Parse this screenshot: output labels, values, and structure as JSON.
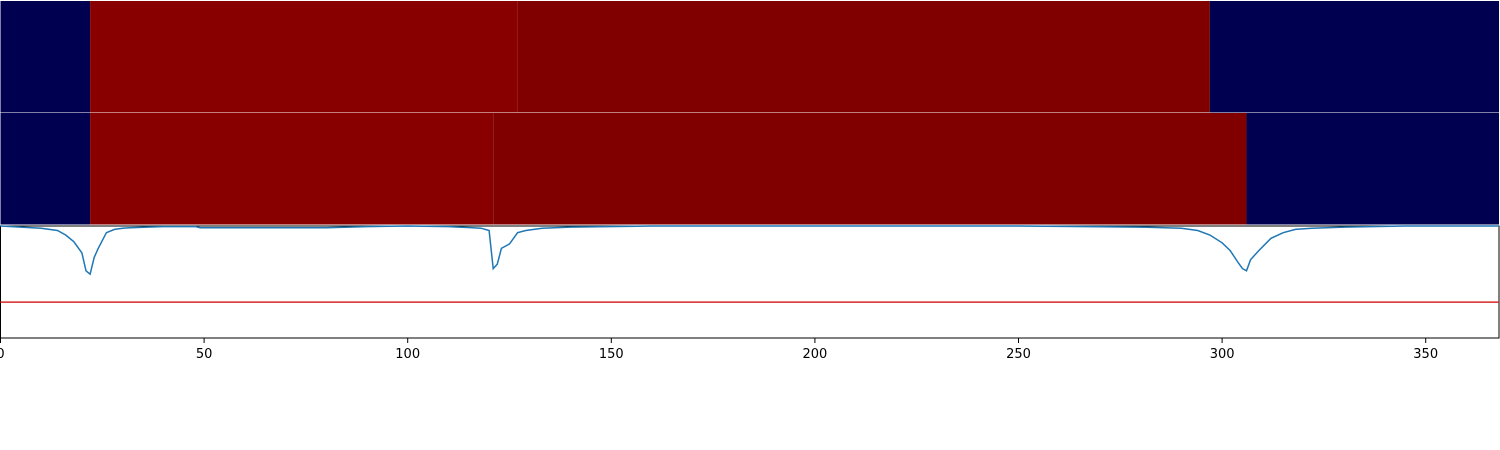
{
  "chart_data": {
    "type": "heatmap",
    "title": "",
    "xlabel": "",
    "ylabel": "",
    "xlim": [
      0,
      368
    ],
    "xticks": [
      0,
      50,
      100,
      150,
      200,
      250,
      300,
      350
    ],
    "grid": false,
    "legend": "none",
    "segment_rows": [
      {
        "name": "",
        "segments": [
          {
            "start": 0,
            "end": 22,
            "color": "#000050"
          },
          {
            "start": 22,
            "end": 127,
            "color": "#890000"
          },
          {
            "start": 127,
            "end": 297,
            "color": "#800000"
          },
          {
            "start": 297,
            "end": 368,
            "color": "#000050"
          }
        ]
      },
      {
        "name": "",
        "segments": [
          {
            "start": 0,
            "end": 22,
            "color": "#000050"
          },
          {
            "start": 22,
            "end": 121,
            "color": "#890000"
          },
          {
            "start": 121,
            "end": 306,
            "color": "#800000"
          },
          {
            "start": 306,
            "end": 368,
            "color": "#000050"
          }
        ]
      }
    ],
    "line_panel": {
      "ylim": [
        0,
        1
      ],
      "threshold": 0.32,
      "threshold_color": "#d62728",
      "line_color": "#1f77b4",
      "series": [
        {
          "name": "",
          "x": [
            0,
            5,
            10,
            14,
            16,
            18,
            20,
            21,
            22,
            23,
            24,
            26,
            28,
            30,
            32,
            36,
            40,
            48,
            49,
            60,
            70,
            80,
            90,
            100,
            110,
            116,
            118,
            120,
            121,
            122,
            123,
            125,
            127,
            129,
            133,
            140,
            160,
            200,
            250,
            280,
            290,
            294,
            297,
            300,
            302,
            304,
            305,
            306,
            307,
            309,
            312,
            315,
            318,
            322,
            330,
            345,
            368
          ],
          "y": [
            1.0,
            0.99,
            0.98,
            0.96,
            0.92,
            0.86,
            0.76,
            0.6,
            0.57,
            0.72,
            0.8,
            0.94,
            0.97,
            0.98,
            0.985,
            0.99,
            0.995,
            0.995,
            0.985,
            0.985,
            0.985,
            0.985,
            0.995,
            1.0,
            0.995,
            0.985,
            0.98,
            0.96,
            0.62,
            0.66,
            0.8,
            0.84,
            0.94,
            0.96,
            0.98,
            0.99,
            1.0,
            1.0,
            1.0,
            0.99,
            0.98,
            0.96,
            0.92,
            0.85,
            0.78,
            0.67,
            0.62,
            0.6,
            0.7,
            0.78,
            0.89,
            0.94,
            0.97,
            0.98,
            0.99,
            1.0,
            1.0
          ]
        }
      ]
    }
  }
}
